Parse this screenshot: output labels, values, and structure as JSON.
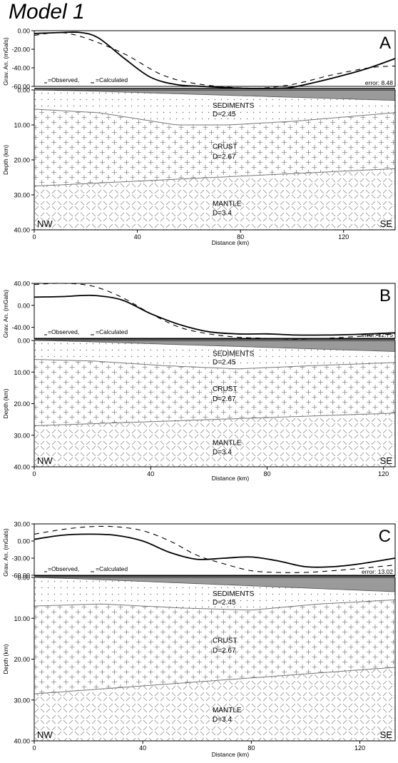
{
  "title": "Model 1",
  "colors": {
    "ink": "#000000",
    "layer_line": "#777777",
    "water_fill": "#9a9a9a",
    "pattern": "#8a8a8a"
  },
  "chart_data": [
    {
      "panel": "A",
      "type": "line",
      "top": {
        "ylabel": "Grav. An. (mGals)",
        "yticks": [
          "0.00",
          "-20.00",
          "-40.00",
          "-60.00"
        ],
        "ylim": [
          -60,
          0
        ],
        "legend": {
          "observed": "=Observed,",
          "calculated": "=Calculated"
        },
        "error_label": "error: 8.48",
        "series": [
          {
            "name": "Observed",
            "style": "solid",
            "x": [
              0,
              10,
              18,
              25,
              35,
              45,
              55,
              65,
              80,
              95,
              100,
              110,
              120,
              130,
              140
            ],
            "y": [
              -3,
              -2,
              -2,
              -8,
              -30,
              -50,
              -58,
              -60,
              -62,
              -62,
              -61,
              -55,
              -48,
              -40,
              -30
            ]
          },
          {
            "name": "Calculated",
            "style": "dashed",
            "x": [
              0,
              10,
              20,
              35,
              50,
              65,
              85,
              100,
              115,
              130,
              140
            ],
            "y": [
              -5,
              -2,
              -8,
              -25,
              -48,
              -58,
              -62,
              -58,
              -48,
              -40,
              -38
            ]
          }
        ]
      },
      "section": {
        "xlabel": "Distance (km)",
        "xticks": [
          "0",
          "40",
          "80",
          "120"
        ],
        "xlim": [
          0,
          140
        ],
        "ylabel": "Depth (km)",
        "yticks": [
          "0.00",
          "10.00",
          "20.00",
          "30.00",
          "40.00"
        ],
        "ylim": [
          0,
          40
        ],
        "water_bottom": {
          "x": [
            0,
            20,
            140
          ],
          "y": [
            0,
            0.3,
            3
          ]
        },
        "sediment_base": {
          "x": [
            0,
            25,
            55,
            75,
            100,
            140
          ],
          "y": [
            5.5,
            6.5,
            10,
            10,
            9,
            6.5
          ]
        },
        "moho": {
          "x": [
            0,
            140
          ],
          "y": [
            27.5,
            22.5
          ]
        },
        "labels": {
          "sediments": "SEDIMENTS",
          "sediments_density": "D=2.45",
          "crust": "CRUST",
          "crust_density": "D=2.67",
          "mantle": "MANTLE",
          "mantle_density": "D=3.4",
          "left": "NW",
          "right": "SE"
        }
      }
    },
    {
      "panel": "B",
      "type": "line",
      "top": {
        "ylabel": "Grav. An. (mGals)",
        "yticks": [
          "40.00",
          "0.00",
          "-40.00"
        ],
        "ylim": [
          -60,
          40
        ],
        "legend": {
          "observed": "=Observed,",
          "calculated": "=Calculated"
        },
        "error_label": "error: 12.75",
        "series": [
          {
            "name": "Observed",
            "style": "solid",
            "x": [
              0,
              10,
              20,
              30,
              40,
              50,
              60,
              70,
              80,
              90,
              100,
              110,
              124
            ],
            "y": [
              15,
              16,
              18,
              10,
              -15,
              -35,
              -48,
              -52,
              -52,
              -54,
              -54,
              -53,
              -50
            ]
          },
          {
            "name": "Calculated",
            "style": "dashed",
            "x": [
              0,
              10,
              20,
              30,
              40,
              50,
              60,
              70,
              80,
              90,
              100,
              110,
              124
            ],
            "y": [
              38,
              40,
              35,
              15,
              -15,
              -40,
              -52,
              -58,
              -60,
              -62,
              -60,
              -57,
              -52
            ]
          }
        ]
      },
      "section": {
        "xlabel": "Distance (km)",
        "xticks": [
          "0",
          "40",
          "80",
          "120"
        ],
        "xlim": [
          0,
          124
        ],
        "ylabel": "Depth (km)",
        "yticks": [
          "0.00",
          "10.00",
          "20.00",
          "30.00",
          "40.00"
        ],
        "ylim": [
          0,
          40
        ],
        "water_bottom": {
          "x": [
            0,
            15,
            124
          ],
          "y": [
            0,
            0.3,
            3.5
          ]
        },
        "sediment_base": {
          "x": [
            0,
            20,
            45,
            70,
            95,
            124
          ],
          "y": [
            6,
            6.5,
            8,
            9,
            8,
            7
          ]
        },
        "moho": {
          "x": [
            0,
            124
          ],
          "y": [
            27,
            23
          ]
        },
        "labels": {
          "sediments": "SEDIMENTS",
          "sediments_density": "D=2.45",
          "crust": "CRUST",
          "crust_density": "D=2.67",
          "mantle": "MANTLE",
          "mantle_density": "D=3.4",
          "left": "NW",
          "right": "SE"
        }
      }
    },
    {
      "panel": "C",
      "type": "line",
      "top": {
        "ylabel": "Grav. An. (mGals)",
        "yticks": [
          "30.00",
          "0.00",
          "-30.00",
          "-60.00"
        ],
        "ylim": [
          -60,
          30
        ],
        "legend": {
          "observed": "=Observed,",
          "calculated": "=Calculated"
        },
        "error_label": "error: 13.02",
        "series": [
          {
            "name": "Observed",
            "style": "solid",
            "x": [
              0,
              10,
              20,
              30,
              40,
              50,
              60,
              70,
              80,
              90,
              100,
              110,
              120,
              133
            ],
            "y": [
              3,
              10,
              12,
              10,
              0,
              -20,
              -32,
              -30,
              -28,
              -35,
              -45,
              -45,
              -40,
              -30
            ]
          },
          {
            "name": "Calculated",
            "style": "dashed",
            "x": [
              0,
              10,
              20,
              30,
              40,
              50,
              60,
              70,
              80,
              90,
              100,
              110,
              120,
              133
            ],
            "y": [
              12,
              20,
              25,
              25,
              18,
              0,
              -25,
              -40,
              -52,
              -55,
              -55,
              -52,
              -48,
              -42
            ]
          }
        ]
      },
      "section": {
        "xlabel": "Distance (km)",
        "xticks": [
          "0",
          "40",
          "80",
          "120"
        ],
        "xlim": [
          0,
          133
        ],
        "ylabel": "Depth (km)",
        "yticks": [
          "0.00",
          "10.00",
          "20.00",
          "30.00",
          "40.00"
        ],
        "ylim": [
          0,
          40
        ],
        "water_bottom": {
          "x": [
            0,
            15,
            133
          ],
          "y": [
            0,
            0.3,
            3.5
          ]
        },
        "sediment_base": {
          "x": [
            0,
            25,
            55,
            80,
            105,
            133
          ],
          "y": [
            7,
            6.5,
            7.5,
            8,
            6.5,
            5.5
          ]
        },
        "moho": {
          "x": [
            0,
            133
          ],
          "y": [
            28.5,
            22
          ]
        },
        "labels": {
          "sediments": "SEDIMENTS",
          "sediments_density": "D=2.45",
          "crust": "CRUST",
          "crust_density": "D=2.67",
          "mantle": "MANTLE",
          "mantle_density": "D=3.4",
          "left": "NW",
          "right": "SE"
        }
      }
    }
  ]
}
